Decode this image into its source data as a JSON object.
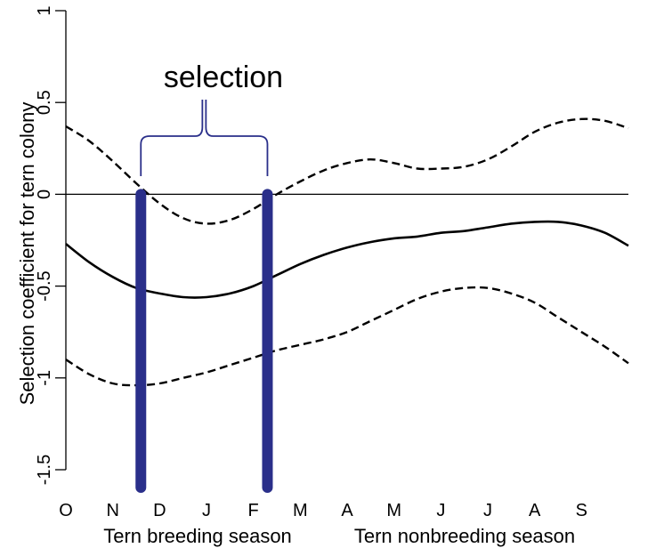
{
  "chart_data": {
    "type": "line",
    "title": "",
    "ylabel": "Selection coefficient for tern colony",
    "xlabel": "",
    "ylim": [
      -1.5,
      1
    ],
    "yticks": [
      1,
      0.5,
      0,
      -0.5,
      -1,
      -1.5
    ],
    "ytick_labels": [
      "1",
      "0.5",
      "0",
      "-0.5",
      "-1",
      "-1.5"
    ],
    "x_tick_labels": [
      "O",
      "N",
      "D",
      "J",
      "F",
      "M",
      "A",
      "M",
      "J",
      "J",
      "A",
      "S"
    ],
    "reference_line_y": 0,
    "series": [
      {
        "style": "solid",
        "points": [
          [
            0.0,
            -0.27
          ],
          [
            0.5,
            -0.37
          ],
          [
            1.0,
            -0.45
          ],
          [
            1.5,
            -0.51
          ],
          [
            2.0,
            -0.54
          ],
          [
            2.5,
            -0.56
          ],
          [
            3.0,
            -0.56
          ],
          [
            3.5,
            -0.54
          ],
          [
            4.0,
            -0.5
          ],
          [
            4.5,
            -0.44
          ],
          [
            5.0,
            -0.38
          ],
          [
            5.5,
            -0.33
          ],
          [
            6.0,
            -0.29
          ],
          [
            6.5,
            -0.26
          ],
          [
            7.0,
            -0.24
          ],
          [
            7.5,
            -0.23
          ],
          [
            8.0,
            -0.21
          ],
          [
            8.5,
            -0.2
          ],
          [
            9.0,
            -0.18
          ],
          [
            9.5,
            -0.16
          ],
          [
            10.0,
            -0.15
          ],
          [
            10.5,
            -0.15
          ],
          [
            11.0,
            -0.17
          ],
          [
            11.5,
            -0.21
          ],
          [
            12.0,
            -0.28
          ]
        ]
      },
      {
        "style": "dashed",
        "points": [
          [
            0.0,
            0.37
          ],
          [
            0.5,
            0.29
          ],
          [
            1.0,
            0.18
          ],
          [
            1.5,
            0.06
          ],
          [
            2.0,
            -0.05
          ],
          [
            2.5,
            -0.13
          ],
          [
            3.0,
            -0.16
          ],
          [
            3.5,
            -0.14
          ],
          [
            4.0,
            -0.08
          ],
          [
            4.5,
            0.0
          ],
          [
            5.0,
            0.07
          ],
          [
            5.5,
            0.13
          ],
          [
            6.0,
            0.17
          ],
          [
            6.5,
            0.19
          ],
          [
            7.0,
            0.17
          ],
          [
            7.5,
            0.14
          ],
          [
            8.0,
            0.14
          ],
          [
            8.5,
            0.15
          ],
          [
            9.0,
            0.19
          ],
          [
            9.5,
            0.26
          ],
          [
            10.0,
            0.34
          ],
          [
            10.5,
            0.39
          ],
          [
            11.0,
            0.41
          ],
          [
            11.5,
            0.4
          ],
          [
            12.0,
            0.36
          ]
        ]
      },
      {
        "style": "dashed",
        "points": [
          [
            0.0,
            -0.9
          ],
          [
            0.5,
            -0.98
          ],
          [
            1.0,
            -1.03
          ],
          [
            1.5,
            -1.04
          ],
          [
            2.0,
            -1.03
          ],
          [
            2.5,
            -1.0
          ],
          [
            3.0,
            -0.97
          ],
          [
            3.5,
            -0.93
          ],
          [
            4.0,
            -0.89
          ],
          [
            4.5,
            -0.85
          ],
          [
            5.0,
            -0.82
          ],
          [
            5.5,
            -0.79
          ],
          [
            6.0,
            -0.75
          ],
          [
            6.5,
            -0.69
          ],
          [
            7.0,
            -0.63
          ],
          [
            7.5,
            -0.57
          ],
          [
            8.0,
            -0.53
          ],
          [
            8.5,
            -0.51
          ],
          [
            9.0,
            -0.51
          ],
          [
            9.5,
            -0.54
          ],
          [
            10.0,
            -0.59
          ],
          [
            10.5,
            -0.67
          ],
          [
            11.0,
            -0.75
          ],
          [
            11.5,
            -0.83
          ],
          [
            12.0,
            -0.92
          ]
        ]
      }
    ],
    "vertical_bars": [
      {
        "x": 1.6,
        "y_from": -1.5,
        "y_to": 0,
        "color": "#2a2f8a"
      },
      {
        "x": 4.3,
        "y_from": -1.5,
        "y_to": 0,
        "color": "#2a2f8a"
      }
    ],
    "annotation": {
      "text": "selection",
      "brace_from_x": 1.6,
      "brace_to_x": 4.3
    },
    "bottom_labels": [
      "Tern breeding season",
      "Tern nonbreeding season"
    ]
  },
  "colors": {
    "line": "#000000",
    "bar": "#2a2f8a",
    "brace": "#2a2f8a"
  }
}
